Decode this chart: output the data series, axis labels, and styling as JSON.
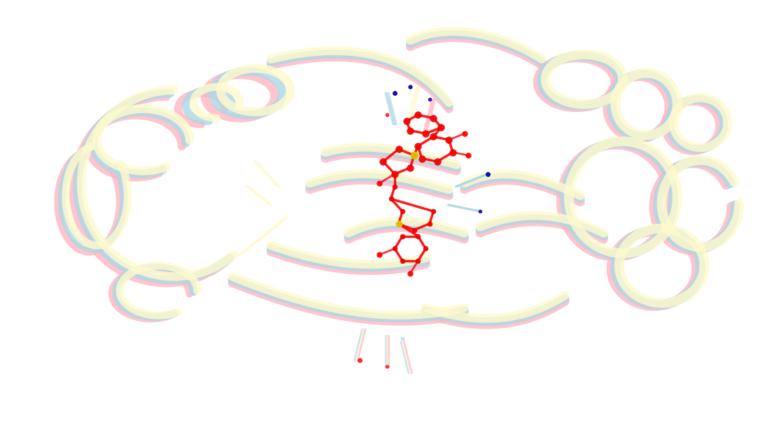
{
  "background_color": "#ffffff",
  "figure_width": 11.06,
  "figure_height": 6.22,
  "dpi": 100,
  "protein_colors": {
    "lyn": "#FFB6C1",
    "fyn": "#ADD8E6",
    "blk": "#FFFACD"
  },
  "ligand_color": "#CC0000",
  "ligand_color2": "#FF0000",
  "title": "",
  "xlim": [
    -5,
    5
  ],
  "ylim": [
    -3.5,
    3.5
  ]
}
